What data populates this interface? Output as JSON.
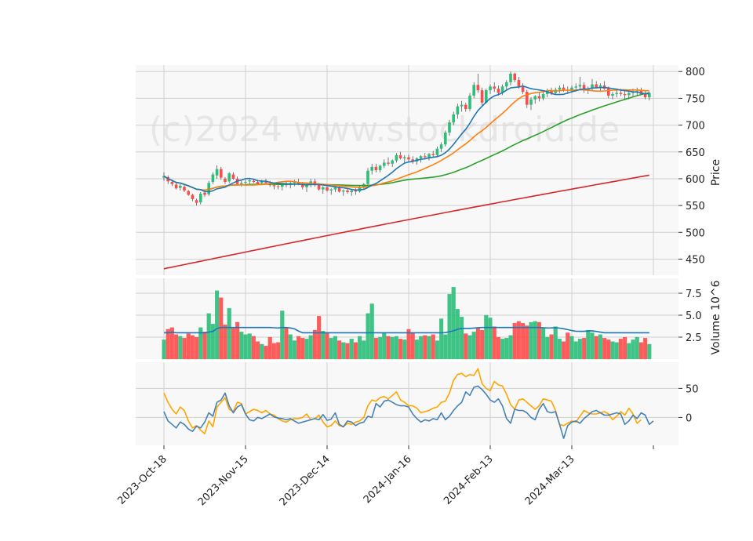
{
  "chart_data": {
    "type": "candlestick",
    "watermark": "(c)2024 www.stockdroid.de",
    "colors": {
      "up": "#2bbf7a",
      "down": "#ff4b4b",
      "sma_fast": "#1f77b4",
      "sma_mid": "#ff7f0e",
      "sma_slow": "#2ca02c",
      "sma_long": "#d62728",
      "volume_ma": "#1f77b4",
      "osc_blue": "#4682b4",
      "osc_orange": "#ffa500",
      "panel_bg": "#f8f8f8",
      "grid": "#d0d0d0"
    },
    "x_ticks": [
      "2023-Oct-18",
      "2023-Nov-15",
      "2023-Dec-14",
      "2024-Jan-16",
      "2024-Feb-13",
      "2024-Mar-13"
    ],
    "x_tick_index": [
      0,
      20,
      40,
      60,
      80,
      100
    ],
    "n_bars": 120,
    "price_panel": {
      "ylabel": "Price",
      "ylim": [
        420,
        812
      ],
      "ticks": [
        450,
        500,
        550,
        600,
        650,
        700,
        750,
        800
      ],
      "ohlc": [
        [
          602,
          612,
          596,
          605
        ],
        [
          603,
          606,
          590,
          595
        ],
        [
          594,
          598,
          586,
          590
        ],
        [
          589,
          592,
          580,
          582
        ],
        [
          583,
          590,
          578,
          587
        ],
        [
          585,
          589,
          575,
          578
        ],
        [
          577,
          579,
          568,
          570
        ],
        [
          570,
          572,
          558,
          562
        ],
        [
          560,
          563,
          550,
          555
        ],
        [
          556,
          575,
          552,
          572
        ],
        [
          574,
          578,
          566,
          570
        ],
        [
          571,
          596,
          568,
          592
        ],
        [
          594,
          612,
          590,
          608
        ],
        [
          606,
          625,
          600,
          618
        ],
        [
          618,
          622,
          598,
          602
        ],
        [
          600,
          603,
          590,
          594
        ],
        [
          595,
          612,
          592,
          610
        ],
        [
          608,
          612,
          598,
          600
        ],
        [
          600,
          604,
          588,
          590
        ],
        [
          590,
          596,
          585,
          592
        ],
        [
          593,
          598,
          588,
          594
        ],
        [
          595,
          600,
          590,
          597
        ],
        [
          596,
          600,
          592,
          594
        ],
        [
          594,
          598,
          588,
          590
        ],
        [
          592,
          598,
          588,
          596
        ],
        [
          596,
          600,
          590,
          592
        ],
        [
          592,
          596,
          585,
          588
        ],
        [
          588,
          592,
          580,
          586
        ],
        [
          586,
          590,
          580,
          585
        ],
        [
          585,
          592,
          578,
          590
        ],
        [
          590,
          596,
          584,
          588
        ],
        [
          588,
          594,
          582,
          592
        ],
        [
          592,
          598,
          586,
          594
        ],
        [
          594,
          600,
          588,
          590
        ],
        [
          590,
          594,
          580,
          584
        ],
        [
          584,
          590,
          575,
          588
        ],
        [
          588,
          600,
          584,
          595
        ],
        [
          595,
          600,
          585,
          588
        ],
        [
          588,
          592,
          578,
          580
        ],
        [
          580,
          586,
          572,
          584
        ],
        [
          584,
          590,
          576,
          578
        ],
        [
          578,
          582,
          570,
          580
        ],
        [
          580,
          586,
          575,
          584
        ],
        [
          584,
          588,
          574,
          576
        ],
        [
          576,
          580,
          568,
          578
        ],
        [
          578,
          582,
          572,
          575
        ],
        [
          575,
          580,
          568,
          578
        ],
        [
          578,
          582,
          570,
          576
        ],
        [
          576,
          588,
          574,
          585
        ],
        [
          585,
          592,
          580,
          590
        ],
        [
          590,
          620,
          588,
          615
        ],
        [
          615,
          628,
          608,
          622
        ],
        [
          622,
          628,
          612,
          616
        ],
        [
          616,
          626,
          612,
          624
        ],
        [
          624,
          636,
          620,
          630
        ],
        [
          630,
          640,
          624,
          628
        ],
        [
          628,
          636,
          622,
          634
        ],
        [
          634,
          648,
          630,
          644
        ],
        [
          644,
          650,
          636,
          638
        ],
        [
          638,
          644,
          630,
          640
        ],
        [
          640,
          645,
          632,
          636
        ],
        [
          636,
          642,
          628,
          632
        ],
        [
          632,
          640,
          626,
          638
        ],
        [
          638,
          644,
          630,
          642
        ],
        [
          642,
          648,
          636,
          640
        ],
        [
          640,
          648,
          634,
          646
        ],
        [
          646,
          652,
          640,
          644
        ],
        [
          644,
          660,
          640,
          656
        ],
        [
          656,
          668,
          650,
          664
        ],
        [
          664,
          690,
          660,
          686
        ],
        [
          686,
          710,
          680,
          705
        ],
        [
          705,
          725,
          700,
          720
        ],
        [
          720,
          740,
          712,
          735
        ],
        [
          735,
          745,
          725,
          738
        ],
        [
          738,
          742,
          725,
          730
        ],
        [
          730,
          760,
          726,
          755
        ],
        [
          755,
          780,
          750,
          775
        ],
        [
          775,
          796,
          760,
          765
        ],
        [
          765,
          770,
          735,
          742
        ],
        [
          742,
          768,
          740,
          765
        ],
        [
          765,
          776,
          758,
          772
        ],
        [
          772,
          780,
          762,
          768
        ],
        [
          768,
          774,
          755,
          760
        ],
        [
          760,
          776,
          756,
          772
        ],
        [
          772,
          784,
          766,
          780
        ],
        [
          780,
          800,
          774,
          796
        ],
        [
          796,
          798,
          780,
          784
        ],
        [
          784,
          790,
          768,
          772
        ],
        [
          772,
          778,
          758,
          762
        ],
        [
          762,
          766,
          732,
          738
        ],
        [
          738,
          752,
          728,
          748
        ],
        [
          748,
          756,
          740,
          754
        ],
        [
          754,
          760,
          744,
          750
        ],
        [
          750,
          762,
          746,
          758
        ],
        [
          758,
          768,
          752,
          764
        ],
        [
          764,
          770,
          756,
          760
        ],
        [
          760,
          770,
          756,
          766
        ],
        [
          766,
          774,
          760,
          770
        ],
        [
          770,
          776,
          762,
          766
        ],
        [
          766,
          772,
          758,
          764
        ],
        [
          764,
          774,
          760,
          770
        ],
        [
          770,
          778,
          764,
          772
        ],
        [
          772,
          790,
          768,
          775
        ],
        [
          775,
          780,
          760,
          765
        ],
        [
          765,
          772,
          758,
          768
        ],
        [
          768,
          786,
          764,
          776
        ],
        [
          776,
          782,
          768,
          770
        ],
        [
          770,
          778,
          762,
          774
        ],
        [
          774,
          782,
          766,
          768
        ],
        [
          768,
          772,
          750,
          755
        ],
        [
          755,
          762,
          748,
          758
        ],
        [
          758,
          766,
          752,
          760
        ],
        [
          760,
          768,
          754,
          758
        ],
        [
          758,
          764,
          748,
          756
        ],
        [
          756,
          762,
          748,
          760
        ],
        [
          760,
          768,
          754,
          762
        ],
        [
          762,
          770,
          756,
          764
        ],
        [
          764,
          770,
          756,
          758
        ],
        [
          758,
          764,
          748,
          752
        ],
        [
          752,
          762,
          746,
          760
        ]
      ]
    },
    "volume_panel": {
      "ylabel": "Volume  10^6",
      "ylim": [
        0,
        9.2
      ],
      "ticks": [
        2.5,
        5.0,
        7.5
      ],
      "tick_labels": [
        "2.5",
        "5.0",
        "7.5"
      ],
      "values": [
        2.2,
        3.4,
        3.6,
        2.8,
        2.6,
        2.4,
        2.9,
        2.7,
        2.5,
        3.6,
        3.1,
        5.2,
        4.0,
        7.8,
        7.0,
        3.9,
        5.8,
        3.5,
        4.2,
        3.1,
        2.8,
        2.9,
        2.6,
        2.0,
        1.7,
        1.5,
        2.5,
        1.8,
        1.9,
        5.5,
        3.6,
        2.8,
        2.1,
        2.6,
        2.4,
        2.3,
        2.7,
        3.3,
        4.9,
        3.2,
        3.0,
        2.4,
        2.6,
        2.1,
        1.9,
        1.8,
        2.3,
        1.9,
        2.6,
        2.1,
        5.2,
        6.3,
        2.4,
        2.5,
        3.0,
        2.6,
        2.5,
        2.6,
        2.3,
        2.2,
        3.4,
        3.0,
        2.2,
        2.6,
        2.7,
        2.6,
        2.8,
        2.1,
        4.6,
        2.8,
        7.4,
        8.2,
        5.7,
        4.8,
        2.9,
        2.7,
        3.1,
        3.5,
        3.3,
        5.0,
        4.7,
        3.7,
        2.5,
        2.3,
        2.4,
        2.7,
        4.1,
        4.3,
        4.1,
        3.8,
        4.2,
        4.3,
        4.2,
        3.6,
        2.5,
        2.8,
        3.7,
        2.3,
        2.0,
        3.0,
        2.6,
        2.0,
        2.3,
        2.4,
        3.3,
        3.0,
        2.6,
        2.8,
        2.4,
        2.2,
        2.0,
        1.9,
        2.3,
        2.5,
        1.8,
        2.2,
        2.5,
        1.9,
        2.4,
        1.7
      ]
    },
    "oscillator_panel": {
      "ylim": [
        -48,
        95
      ],
      "ticks": [
        0,
        50
      ],
      "blue": [
        10,
        -6,
        -12,
        -18,
        -8,
        -12,
        -20,
        -24,
        -15,
        -18,
        -8,
        8,
        2,
        26,
        30,
        42,
        20,
        8,
        18,
        22,
        6,
        -4,
        -6,
        0,
        -2,
        2,
        6,
        1,
        -1,
        -2,
        -4,
        -2,
        -6,
        -10,
        -8,
        -6,
        -4,
        -2,
        -4,
        5,
        -5,
        -3,
        8,
        -12,
        -16,
        -6,
        -8,
        -14,
        -10,
        -8,
        2,
        0,
        24,
        18,
        28,
        30,
        26,
        22,
        20,
        20,
        18,
        6,
        -2,
        -8,
        -4,
        -6,
        -2,
        -4,
        8,
        -4,
        2,
        12,
        20,
        26,
        44,
        38,
        52,
        54,
        48,
        40,
        30,
        26,
        32,
        20,
        -2,
        -10,
        14,
        12,
        12,
        8,
        0,
        -4,
        14,
        24,
        10,
        8,
        10,
        -12,
        -36,
        -14,
        -8,
        -6,
        -10,
        -2,
        4,
        10,
        12,
        8,
        4,
        4,
        6,
        8,
        6,
        -12,
        -6,
        4,
        -2,
        8,
        4,
        -12,
        -6
      ],
      "orange": [
        42,
        26,
        14,
        6,
        18,
        12,
        -6,
        -18,
        -14,
        -22,
        -28,
        -6,
        -16,
        18,
        26,
        34,
        14,
        10,
        26,
        24,
        6,
        10,
        14,
        12,
        8,
        12,
        6,
        4,
        -2,
        -6,
        -8,
        -4,
        -2,
        -2,
        0,
        6,
        -4,
        -2,
        4,
        -8,
        -16,
        -14,
        -6,
        -14,
        -16,
        -10,
        -12,
        -8,
        -6,
        0,
        20,
        30,
        28,
        34,
        36,
        32,
        38,
        44,
        30,
        26,
        20,
        20,
        16,
        8,
        10,
        12,
        16,
        18,
        26,
        28,
        42,
        64,
        74,
        76,
        70,
        74,
        72,
        84,
        58,
        50,
        46,
        62,
        56,
        54,
        40,
        22,
        14,
        30,
        32,
        26,
        20,
        14,
        20,
        32,
        30,
        28,
        12,
        -12,
        -14,
        -10,
        -6,
        -8,
        2,
        12,
        8,
        6,
        6,
        8,
        10,
        6,
        -4,
        2,
        10,
        4,
        16,
        6,
        -10,
        -4
      ]
    }
  }
}
